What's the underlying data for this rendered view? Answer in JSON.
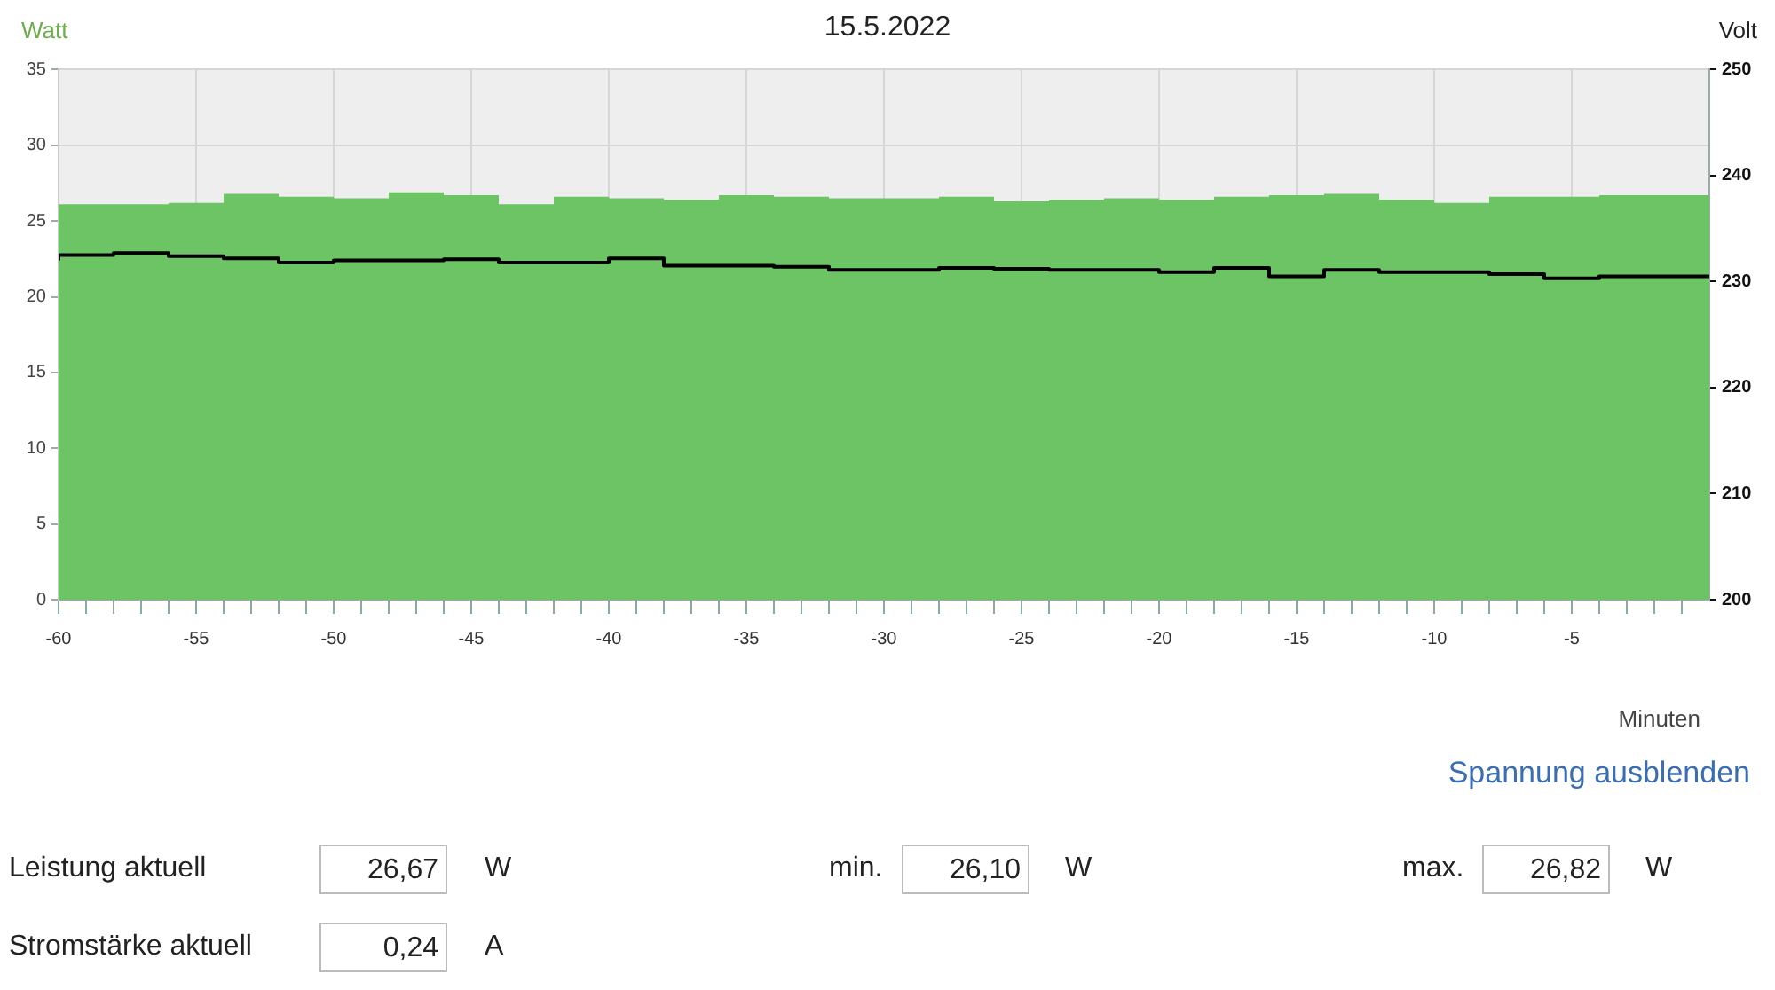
{
  "chart_data": {
    "type": "step",
    "title": "15.5.2022",
    "ylabel": "Watt",
    "y2label": "Volt",
    "xlabel": "Minuten",
    "x": [
      -60,
      -58,
      -56,
      -54,
      -52,
      -50,
      -48,
      -46,
      -44,
      -42,
      -40,
      -38,
      -36,
      -34,
      -32,
      -30,
      -28,
      -26,
      -24,
      -22,
      -20,
      -18,
      -16,
      -14,
      -12,
      -10,
      -8,
      -6,
      -4,
      -2,
      0
    ],
    "series": [
      {
        "type": "area",
        "color": "#6cc464",
        "values": [
          26.2,
          26.1,
          26.1,
          26.2,
          26.8,
          26.6,
          26.5,
          26.9,
          26.7,
          26.1,
          26.6,
          26.5,
          26.4,
          26.7,
          26.6,
          26.5,
          26.5,
          26.6,
          26.3,
          26.4,
          26.5,
          26.4,
          26.6,
          26.7,
          26.8,
          26.4,
          26.2,
          26.6,
          26.6,
          26.7,
          26.7
        ]
      },
      {
        "type": "step",
        "axis": "y2",
        "color": "#000000",
        "values": [
          232.0,
          232.5,
          232.7,
          232.4,
          232.2,
          231.8,
          232.0,
          232.0,
          232.1,
          231.8,
          231.8,
          232.2,
          231.5,
          231.5,
          231.4,
          231.1,
          231.1,
          231.3,
          231.2,
          231.1,
          231.1,
          230.9,
          231.3,
          230.5,
          231.1,
          230.9,
          230.9,
          230.7,
          230.3,
          230.5,
          230.5
        ]
      }
    ],
    "xlim": [
      -60,
      0
    ],
    "xticks": [
      -60,
      {
        "value": -59,
        "label": null
      },
      {
        "value": -58,
        "label": null
      },
      {
        "value": -57,
        "label": null
      },
      {
        "value": -56,
        "label": null
      },
      -55,
      {
        "value": -54,
        "label": null
      },
      {
        "value": -53,
        "label": null
      },
      {
        "value": -52,
        "label": null
      },
      {
        "value": -51,
        "label": null
      },
      -50,
      {
        "value": -49,
        "label": null
      },
      {
        "value": -48,
        "label": null
      },
      {
        "value": -47,
        "label": null
      },
      {
        "value": -46,
        "label": null
      },
      -45,
      {
        "value": -44,
        "label": null
      },
      {
        "value": -43,
        "label": null
      },
      {
        "value": -42,
        "label": null
      },
      {
        "value": -41,
        "label": null
      },
      -40,
      {
        "value": -39,
        "label": null
      },
      {
        "value": -38,
        "label": null
      },
      {
        "value": -37,
        "label": null
      },
      {
        "value": -36,
        "label": null
      },
      -35,
      {
        "value": -34,
        "label": null
      },
      {
        "value": -33,
        "label": null
      },
      {
        "value": -32,
        "label": null
      },
      {
        "value": -31,
        "label": null
      },
      -30,
      {
        "value": -29,
        "label": null
      },
      {
        "value": -28,
        "label": null
      },
      {
        "value": -27,
        "label": null
      },
      {
        "value": -26,
        "label": null
      },
      -25,
      {
        "value": -24,
        "label": null
      },
      {
        "value": -23,
        "label": null
      },
      {
        "value": -22,
        "label": null
      },
      {
        "value": -21,
        "label": null
      },
      -20,
      {
        "value": -19,
        "label": null
      },
      {
        "value": -18,
        "label": null
      },
      {
        "value": -17,
        "label": null
      },
      {
        "value": -16,
        "label": null
      },
      -15,
      {
        "value": -14,
        "label": null
      },
      {
        "value": -13,
        "label": null
      },
      {
        "value": -12,
        "label": null
      },
      {
        "value": -11,
        "label": null
      },
      -10,
      {
        "value": -9,
        "label": null
      },
      {
        "value": -8,
        "label": null
      },
      {
        "value": -7,
        "label": null
      },
      {
        "value": -6,
        "label": null
      },
      -5,
      {
        "value": -4,
        "label": null
      },
      {
        "value": -3,
        "label": null
      },
      {
        "value": -2,
        "label": null
      },
      {
        "value": -1,
        "label": null
      }
    ],
    "ylim": [
      0,
      35
    ],
    "yticks": [
      0,
      5,
      10,
      15,
      20,
      25,
      30,
      35
    ],
    "y2lim": [
      200,
      250
    ],
    "y2ticks": [
      200,
      210,
      220,
      230,
      240,
      250
    ],
    "grid": true,
    "annotations": [
      "Spannung ausblenden",
      "Leistung aktuell",
      "26,67",
      "W",
      "min.",
      "26,10",
      "W",
      "max.",
      "26,82",
      "W",
      "Stromstärke aktuell",
      "0,24",
      "A"
    ]
  }
}
